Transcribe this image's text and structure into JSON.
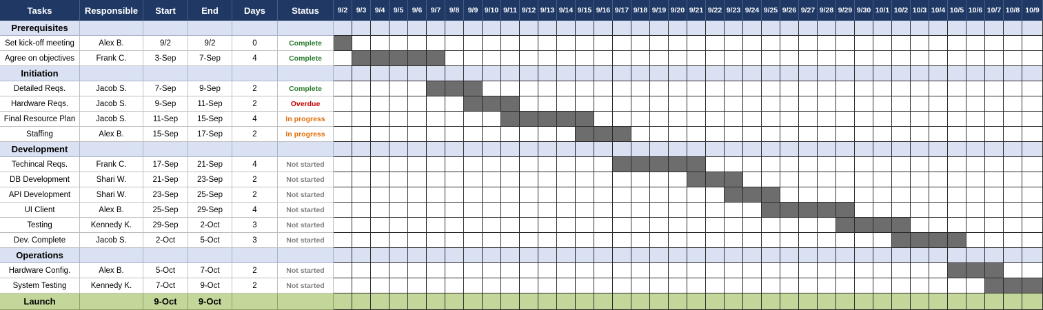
{
  "headers": {
    "tasks": "Tasks",
    "responsible": "Responsible",
    "start": "Start",
    "end": "End",
    "days": "Days",
    "status": "Status"
  },
  "timeline": [
    "9/2",
    "9/3",
    "9/4",
    "9/5",
    "9/6",
    "9/7",
    "9/8",
    "9/9",
    "9/10",
    "9/11",
    "9/12",
    "9/13",
    "9/14",
    "9/15",
    "9/16",
    "9/17",
    "9/18",
    "9/19",
    "9/20",
    "9/21",
    "9/22",
    "9/23",
    "9/24",
    "9/25",
    "9/26",
    "9/27",
    "9/28",
    "9/29",
    "9/30",
    "10/1",
    "10/2",
    "10/3",
    "10/4",
    "10/5",
    "10/6",
    "10/7",
    "10/8",
    "10/9"
  ],
  "colors": {
    "header_bg": "#1f3864",
    "phase_bg": "#d9e1f2",
    "launch_bg": "#c4d79b",
    "bar": "#6d6d6d",
    "complete": "#2e7d32",
    "overdue": "#c00000",
    "in_progress": "#e36c0a",
    "not_started": "#808080"
  },
  "rows": [
    {
      "kind": "phase",
      "name": "Prerequisites"
    },
    {
      "kind": "task",
      "name": "Set kick-off meeting",
      "responsible": "Alex B.",
      "start": "9/2",
      "end": "9/2",
      "days": "0",
      "status": "Complete",
      "status_key": "complete",
      "bar_start": 0,
      "bar_end": 0
    },
    {
      "kind": "task",
      "name": "Agree on objectives",
      "responsible": "Frank C.",
      "start": "3-Sep",
      "end": "7-Sep",
      "days": "4",
      "status": "Complete",
      "status_key": "complete",
      "bar_start": 1,
      "bar_end": 5
    },
    {
      "kind": "phase",
      "name": "Initiation"
    },
    {
      "kind": "task",
      "name": "Detailed Reqs.",
      "responsible": "Jacob S.",
      "start": "7-Sep",
      "end": "9-Sep",
      "days": "2",
      "status": "Complete",
      "status_key": "complete",
      "bar_start": 5,
      "bar_end": 7
    },
    {
      "kind": "task",
      "name": "Hardware Reqs.",
      "responsible": "Jacob S.",
      "start": "9-Sep",
      "end": "11-Sep",
      "days": "2",
      "status": "Overdue",
      "status_key": "overdue",
      "bar_start": 7,
      "bar_end": 9
    },
    {
      "kind": "task",
      "name": "Final Resource Plan",
      "responsible": "Jacob S.",
      "start": "11-Sep",
      "end": "15-Sep",
      "days": "4",
      "status": "In progress",
      "status_key": "in_progress",
      "bar_start": 9,
      "bar_end": 13
    },
    {
      "kind": "task",
      "name": "Staffing",
      "responsible": "Alex B.",
      "start": "15-Sep",
      "end": "17-Sep",
      "days": "2",
      "status": "In progress",
      "status_key": "in_progress",
      "bar_start": 13,
      "bar_end": 15
    },
    {
      "kind": "phase",
      "name": "Development"
    },
    {
      "kind": "task",
      "name": "Techincal Reqs.",
      "responsible": "Frank C.",
      "start": "17-Sep",
      "end": "21-Sep",
      "days": "4",
      "status": "Not started",
      "status_key": "not_started",
      "bar_start": 15,
      "bar_end": 19
    },
    {
      "kind": "task",
      "name": "DB Development",
      "responsible": "Shari W.",
      "start": "21-Sep",
      "end": "23-Sep",
      "days": "2",
      "status": "Not started",
      "status_key": "not_started",
      "bar_start": 19,
      "bar_end": 21
    },
    {
      "kind": "task",
      "name": "API Development",
      "responsible": "Shari W.",
      "start": "23-Sep",
      "end": "25-Sep",
      "days": "2",
      "status": "Not started",
      "status_key": "not_started",
      "bar_start": 21,
      "bar_end": 23
    },
    {
      "kind": "task",
      "name": "UI Client",
      "responsible": "Alex B.",
      "start": "25-Sep",
      "end": "29-Sep",
      "days": "4",
      "status": "Not started",
      "status_key": "not_started",
      "bar_start": 23,
      "bar_end": 27
    },
    {
      "kind": "task",
      "name": "Testing",
      "responsible": "Kennedy K.",
      "start": "29-Sep",
      "end": "2-Oct",
      "days": "3",
      "status": "Not started",
      "status_key": "not_started",
      "bar_start": 27,
      "bar_end": 30
    },
    {
      "kind": "task",
      "name": "Dev. Complete",
      "responsible": "Jacob S.",
      "start": "2-Oct",
      "end": "5-Oct",
      "days": "3",
      "status": "Not started",
      "status_key": "not_started",
      "bar_start": 30,
      "bar_end": 33
    },
    {
      "kind": "phase",
      "name": "Operations"
    },
    {
      "kind": "task",
      "name": "Hardware Config.",
      "responsible": "Alex B.",
      "start": "5-Oct",
      "end": "7-Oct",
      "days": "2",
      "status": "Not started",
      "status_key": "not_started",
      "bar_start": 33,
      "bar_end": 35
    },
    {
      "kind": "task",
      "name": "System Testing",
      "responsible": "Kennedy K.",
      "start": "7-Oct",
      "end": "9-Oct",
      "days": "2",
      "status": "Not started",
      "status_key": "not_started",
      "bar_start": 35,
      "bar_end": 37
    },
    {
      "kind": "launch",
      "name": "Launch",
      "start": "9-Oct",
      "end": "9-Oct"
    }
  ],
  "chart_data": {
    "type": "table",
    "categories": [
      "Set kick-off meeting",
      "Agree on objectives",
      "Detailed Reqs.",
      "Hardware Reqs.",
      "Final Resource Plan",
      "Staffing",
      "Techincal Reqs.",
      "DB Development",
      "API Development",
      "UI Client",
      "Testing",
      "Dev. Complete",
      "Hardware Config.",
      "System Testing"
    ],
    "series": [
      {
        "values": [
          "9/2",
          "3-Sep",
          "7-Sep",
          "9-Sep",
          "11-Sep",
          "15-Sep",
          "17-Sep",
          "21-Sep",
          "23-Sep",
          "25-Sep",
          "29-Sep",
          "2-Oct",
          "5-Oct",
          "7-Oct"
        ]
      },
      {
        "values": [
          "9/2",
          "7-Sep",
          "9-Sep",
          "11-Sep",
          "15-Sep",
          "17-Sep",
          "21-Sep",
          "23-Sep",
          "25-Sep",
          "29-Sep",
          "2-Oct",
          "5-Oct",
          "7-Oct",
          "9-Oct"
        ]
      },
      {
        "values": [
          0,
          4,
          2,
          2,
          4,
          2,
          4,
          2,
          2,
          4,
          3,
          3,
          2,
          2
        ]
      }
    ],
    "grid": true
  }
}
